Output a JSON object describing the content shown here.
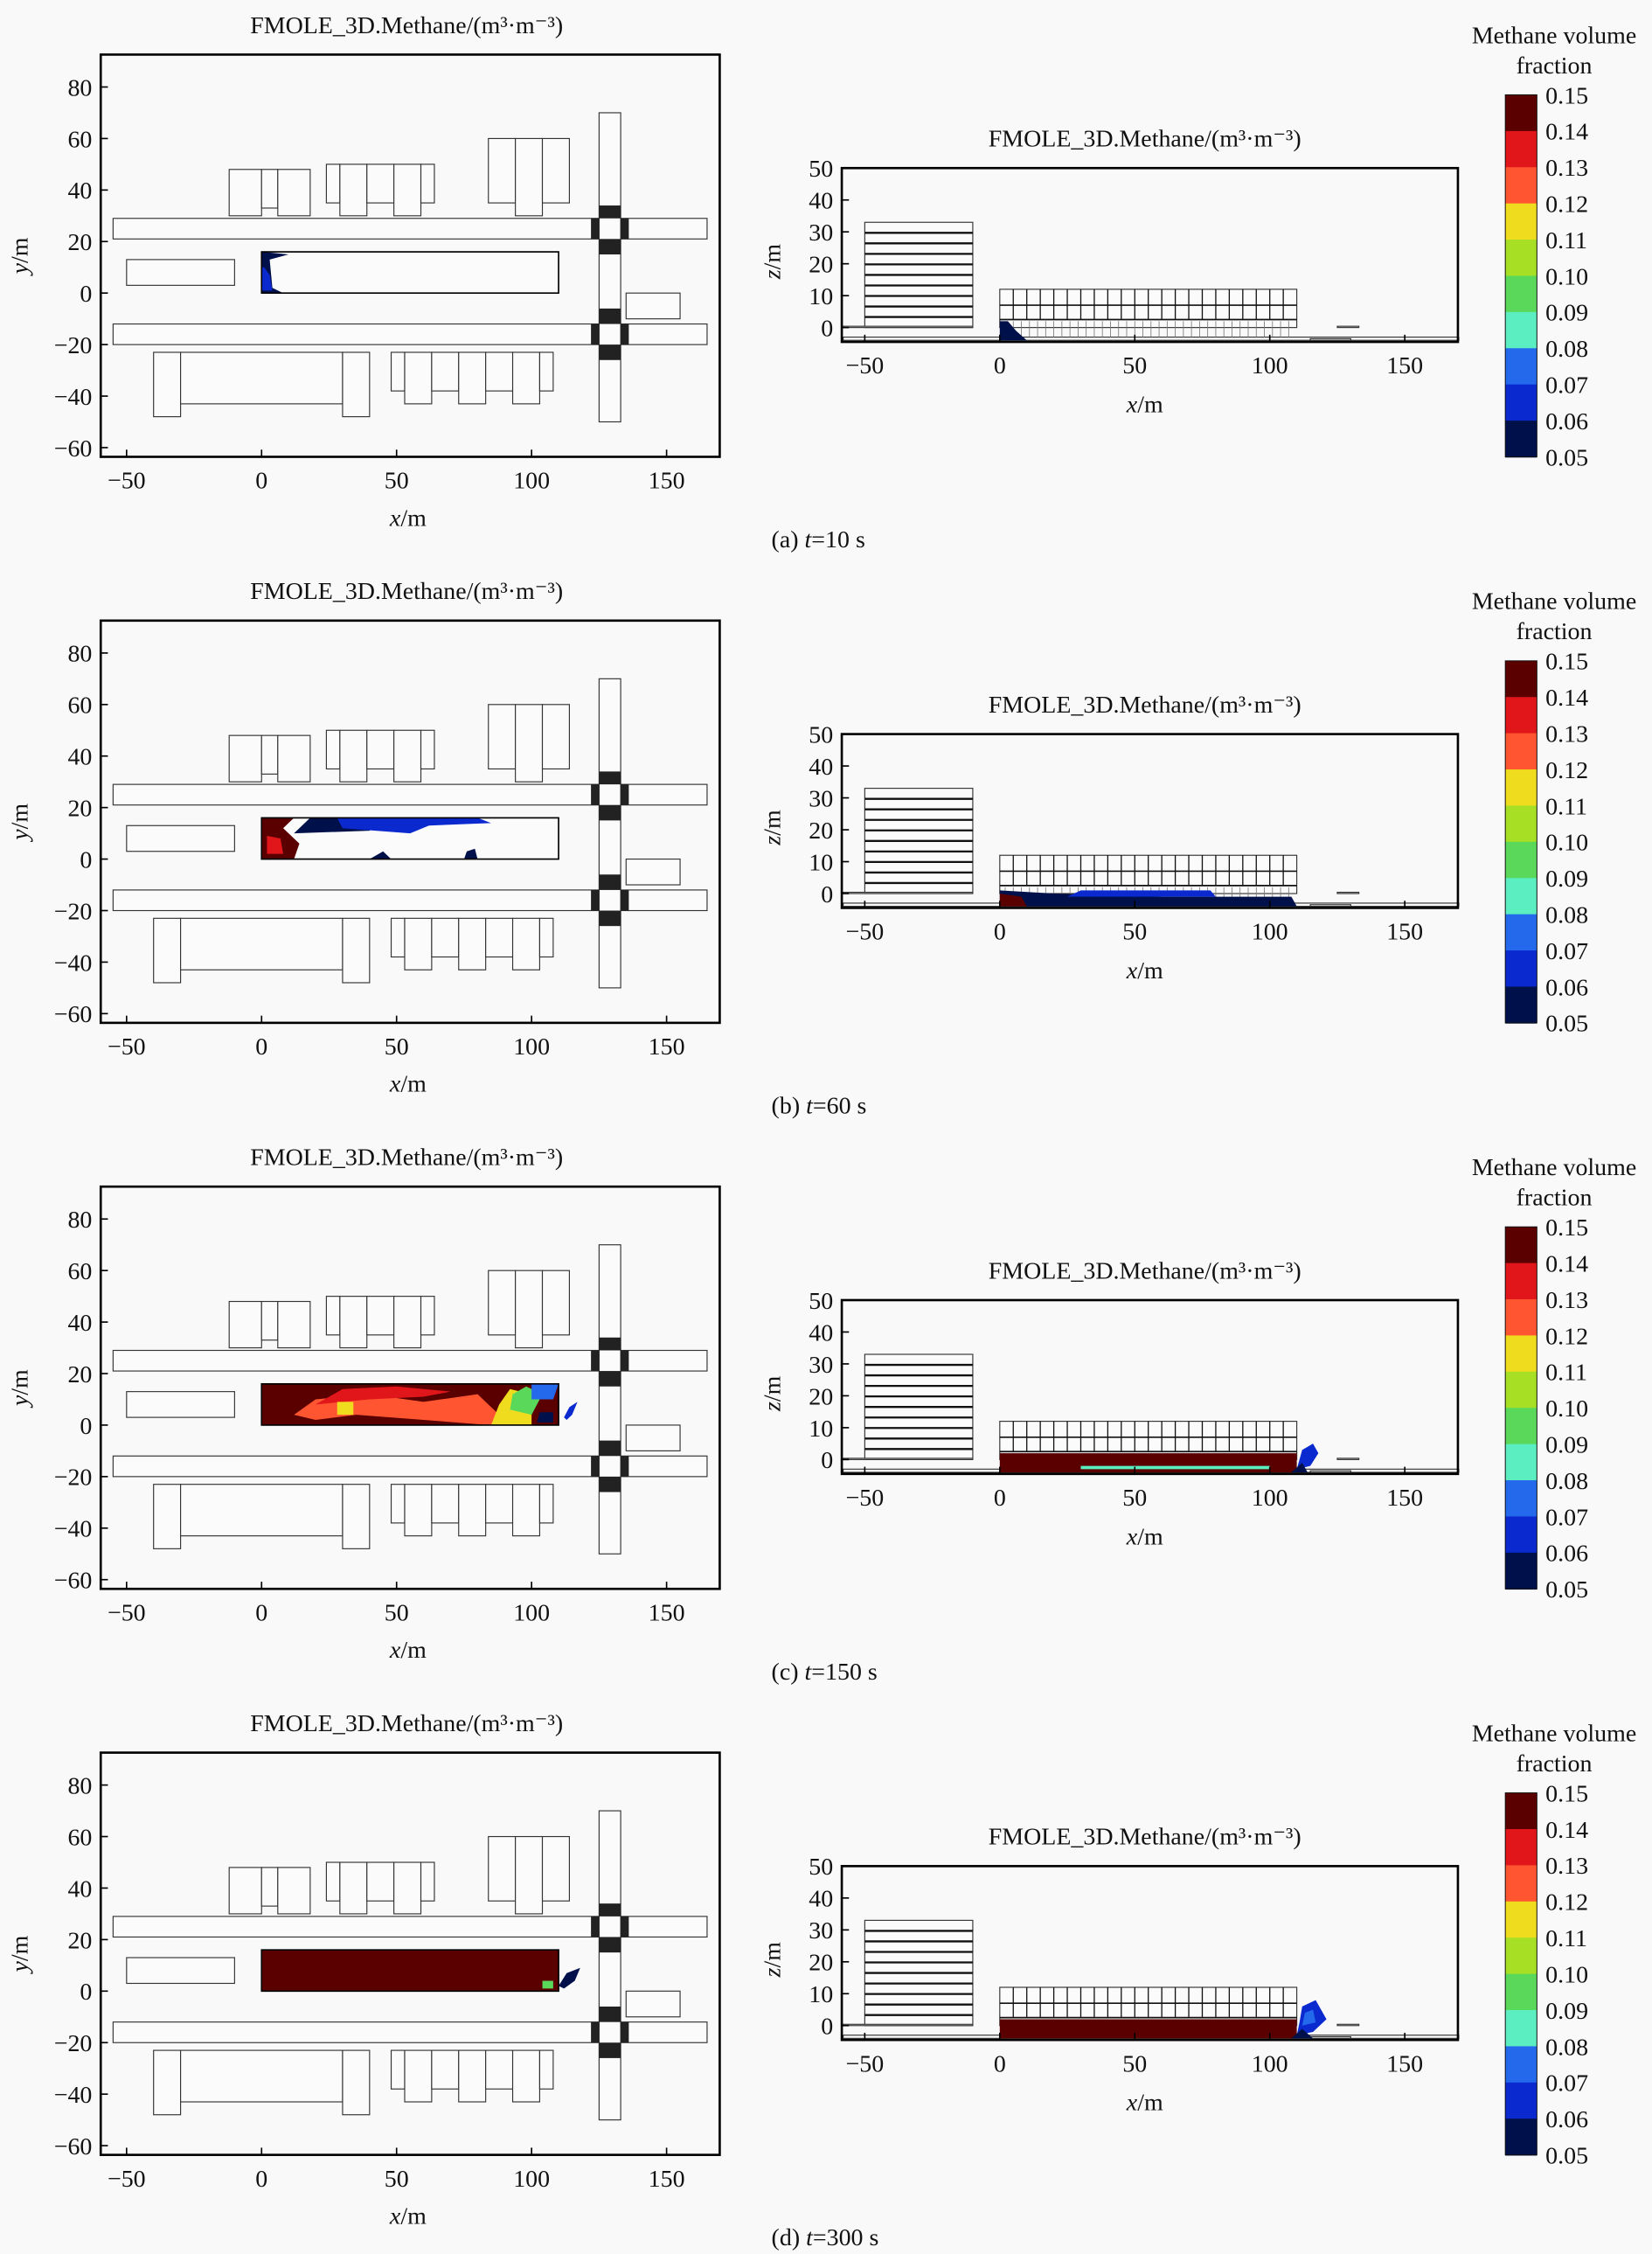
{
  "chart_data": {
    "type": "heatmap",
    "plot_title": "FMOLE_3D.Methane/(m³·m⁻³)",
    "colorbar": {
      "title_line1": "Methane volume",
      "title_line2": "fraction",
      "ticks": [
        "0.15",
        "0.14",
        "0.13",
        "0.12",
        "0.11",
        "0.10",
        "0.09",
        "0.08",
        "0.07",
        "0.06",
        "0.05"
      ],
      "range": [
        0.05,
        0.15
      ],
      "band_colors_high_to_low": [
        "#5a0000",
        "#e0161b",
        "#ff5530",
        "#f0dc1e",
        "#a6df24",
        "#5ad85a",
        "#5aeec0",
        "#2468ec",
        "#0a2ad0",
        "#00104a"
      ]
    },
    "plan_view": {
      "xlabel_var": "x",
      "xlabel_unit": "/m",
      "ylabel_var": "y",
      "ylabel_unit": "/m",
      "xlim": [
        -60,
        169
      ],
      "ylim": [
        -65,
        92
      ],
      "xticks": [
        -50,
        0,
        50,
        100,
        150
      ],
      "xtick_labels": [
        "−50",
        "0",
        "50",
        "100",
        "150"
      ],
      "yticks": [
        80,
        60,
        40,
        20,
        0,
        -20,
        -40,
        -60
      ],
      "ytick_labels": [
        "80",
        "60",
        "40",
        "20",
        "0",
        "−20",
        "−40",
        "−60"
      ],
      "grid": false
    },
    "side_view": {
      "xlabel_var": "x",
      "xlabel_unit": "/m",
      "ylabel_var": "z",
      "ylabel_unit": "/m",
      "xlim": [
        -58,
        170
      ],
      "ylim": [
        -5,
        50
      ],
      "xticks": [
        -50,
        0,
        50,
        100,
        150
      ],
      "xtick_labels": [
        "−50",
        "0",
        "50",
        "100",
        "150"
      ],
      "yticks": [
        50,
        40,
        30,
        20,
        10,
        0
      ],
      "ytick_labels": [
        "50",
        "40",
        "30",
        "20",
        "10",
        "0"
      ],
      "grid": false
    },
    "panels": [
      {
        "label": "(a) ",
        "var": "t",
        "value": "=10 s",
        "time_s": 10,
        "plan_plume": [
          {
            "color": "#00104a",
            "pts": [
              [
                0,
                0
              ],
              [
                8,
                0
              ],
              [
                4,
                2
              ],
              [
                3,
                13
              ],
              [
                10,
                15
              ],
              [
                0,
                16
              ]
            ]
          },
          {
            "color": "#0a2ad0",
            "pts": [
              [
                0,
                1
              ],
              [
                4,
                1
              ],
              [
                3,
                7
              ],
              [
                1,
                10
              ],
              [
                0,
                10
              ]
            ]
          }
        ],
        "side_plume": [
          {
            "color": "#00104a",
            "pts": [
              [
                0,
                -4
              ],
              [
                10,
                -4
              ],
              [
                6,
                -1
              ],
              [
                3,
                2
              ],
              [
                0,
                2
              ]
            ]
          }
        ]
      },
      {
        "label": "(b) ",
        "var": "t",
        "value": "=60 s",
        "time_s": 60,
        "plan_plume": [
          {
            "color": "#5a0000",
            "pts": [
              [
                0,
                0
              ],
              [
                12,
                0
              ],
              [
                14,
                6
              ],
              [
                8,
                12
              ],
              [
                12,
                16
              ],
              [
                0,
                16
              ]
            ]
          },
          {
            "color": "#e0161b",
            "pts": [
              [
                2,
                2
              ],
              [
                8,
                2
              ],
              [
                7,
                8
              ],
              [
                2,
                9
              ]
            ]
          },
          {
            "color": "#00104a",
            "pts": [
              [
                12,
                10
              ],
              [
                40,
                11
              ],
              [
                44,
                16
              ],
              [
                18,
                16
              ]
            ]
          },
          {
            "color": "#0a2ad0",
            "pts": [
              [
                30,
                12
              ],
              [
                55,
                10
              ],
              [
                62,
                13
              ],
              [
                85,
                14
              ],
              [
                80,
                16
              ],
              [
                28,
                16
              ]
            ]
          },
          {
            "color": "#00104a",
            "pts": [
              [
                40,
                0
              ],
              [
                48,
                0
              ],
              [
                45,
                3
              ]
            ]
          },
          {
            "color": "#00104a",
            "pts": [
              [
                75,
                0
              ],
              [
                80,
                0
              ],
              [
                79,
                4
              ],
              [
                76,
                3
              ]
            ]
          }
        ],
        "side_plume": [
          {
            "color": "#00104a",
            "pts": [
              [
                0,
                -4
              ],
              [
                110,
                -4
              ],
              [
                108,
                -1
              ],
              [
                60,
                -1
              ],
              [
                20,
                0
              ],
              [
                0,
                1
              ]
            ]
          },
          {
            "color": "#0a2ad0",
            "pts": [
              [
                25,
                -1
              ],
              [
                80,
                -1
              ],
              [
                78,
                1
              ],
              [
                30,
                1
              ]
            ]
          },
          {
            "color": "#5a0000",
            "pts": [
              [
                0,
                -4
              ],
              [
                10,
                -4
              ],
              [
                8,
                -1
              ],
              [
                0,
                0
              ]
            ]
          }
        ]
      },
      {
        "label": "(c) ",
        "var": "t",
        "value": "=150 s",
        "time_s": 150,
        "plan_plume": [
          {
            "color": "#5a0000",
            "pts": [
              [
                0,
                0
              ],
              [
                110,
                0
              ],
              [
                110,
                16
              ],
              [
                0,
                16
              ]
            ]
          },
          {
            "color": "#ff5530",
            "pts": [
              [
                12,
                4
              ],
              [
                20,
                10
              ],
              [
                40,
                12
              ],
              [
                60,
                9
              ],
              [
                80,
                12
              ],
              [
                88,
                4
              ],
              [
                85,
                0
              ],
              [
                60,
                2
              ],
              [
                35,
                4
              ],
              [
                20,
                2
              ]
            ]
          },
          {
            "color": "#e0161b",
            "pts": [
              [
                20,
                8
              ],
              [
                30,
                14
              ],
              [
                50,
                15
              ],
              [
                70,
                13
              ],
              [
                60,
                11
              ],
              [
                40,
                10
              ]
            ]
          },
          {
            "color": "#f0dc1e",
            "pts": [
              [
                85,
                0
              ],
              [
                100,
                0
              ],
              [
                100,
                12
              ],
              [
                92,
                14
              ],
              [
                88,
                8
              ]
            ]
          },
          {
            "color": "#5ad85a",
            "pts": [
              [
                92,
                6
              ],
              [
                100,
                4
              ],
              [
                104,
                12
              ],
              [
                98,
                15
              ],
              [
                93,
                12
              ]
            ]
          },
          {
            "color": "#2468ec",
            "pts": [
              [
                100,
                10
              ],
              [
                108,
                10
              ],
              [
                110,
                16
              ],
              [
                100,
                16
              ]
            ]
          },
          {
            "color": "#f0dc1e",
            "pts": [
              [
                28,
                4
              ],
              [
                34,
                4
              ],
              [
                34,
                9
              ],
              [
                28,
                9
              ]
            ]
          },
          {
            "color": "#00104a",
            "pts": [
              [
                102,
                1
              ],
              [
                108,
                1
              ],
              [
                108,
                5
              ],
              [
                103,
                5
              ]
            ]
          },
          {
            "color": "#0a2ad0",
            "pts": [
              [
                112,
                3
              ],
              [
                114,
                7
              ],
              [
                117,
                9
              ],
              [
                115,
                4
              ],
              [
                113,
                2
              ]
            ]
          }
        ],
        "side_plume": [
          {
            "color": "#5a0000",
            "pts": [
              [
                0,
                -4
              ],
              [
                110,
                -4
              ],
              [
                110,
                2
              ],
              [
                0,
                2
              ]
            ]
          },
          {
            "color": "#5aeec0",
            "pts": [
              [
                30,
                -3
              ],
              [
                100,
                -3
              ],
              [
                100,
                -2
              ],
              [
                30,
                -2
              ]
            ]
          },
          {
            "color": "#0a2ad0",
            "pts": [
              [
                110,
                -3
              ],
              [
                115,
                -2
              ],
              [
                118,
                2
              ],
              [
                116,
                5
              ],
              [
                112,
                3
              ],
              [
                111,
                0
              ]
            ]
          },
          {
            "color": "#00104a",
            "pts": [
              [
                108,
                -4
              ],
              [
                114,
                -4
              ],
              [
                112,
                -1
              ]
            ]
          }
        ]
      },
      {
        "label": "(d) ",
        "var": "t",
        "value": "=300 s",
        "time_s": 300,
        "plan_plume": [
          {
            "color": "#5a0000",
            "pts": [
              [
                0,
                0
              ],
              [
                110,
                0
              ],
              [
                110,
                16
              ],
              [
                0,
                16
              ]
            ]
          },
          {
            "color": "#5ad85a",
            "pts": [
              [
                104,
                1
              ],
              [
                108,
                1
              ],
              [
                108,
                4
              ],
              [
                104,
                4
              ]
            ]
          },
          {
            "color": "#00104a",
            "pts": [
              [
                110,
                2
              ],
              [
                113,
                7
              ],
              [
                118,
                9
              ],
              [
                116,
                4
              ],
              [
                112,
                1
              ]
            ]
          }
        ],
        "side_plume": [
          {
            "color": "#5a0000",
            "pts": [
              [
                0,
                -4
              ],
              [
                110,
                -4
              ],
              [
                110,
                2
              ],
              [
                0,
                2
              ]
            ]
          },
          {
            "color": "#0a2ad0",
            "pts": [
              [
                110,
                -3
              ],
              [
                116,
                -2
              ],
              [
                121,
                2
              ],
              [
                117,
                8
              ],
              [
                112,
                6
              ],
              [
                111,
                1
              ]
            ]
          },
          {
            "color": "#2468ec",
            "pts": [
              [
                112,
                0
              ],
              [
                117,
                1
              ],
              [
                116,
                5
              ],
              [
                113,
                4
              ]
            ]
          },
          {
            "color": "#00104a",
            "pts": [
              [
                108,
                -4
              ],
              [
                116,
                -4
              ],
              [
                112,
                -1
              ]
            ]
          }
        ]
      }
    ],
    "plan_buildings": [
      [
        -55,
        21,
        165,
        29
      ],
      [
        -55,
        -20,
        165,
        -12
      ],
      [
        125,
        -50,
        133,
        70
      ],
      [
        0,
        0,
        110,
        16
      ],
      [
        -50,
        3,
        -10,
        13
      ],
      [
        135,
        -10,
        155,
        0
      ],
      [
        -12,
        30,
        0,
        48
      ],
      [
        0,
        33,
        6,
        48
      ],
      [
        6,
        30,
        18,
        48
      ],
      [
        24,
        35,
        29,
        50
      ],
      [
        29,
        30,
        39,
        50
      ],
      [
        39,
        35,
        49,
        50
      ],
      [
        49,
        30,
        59,
        50
      ],
      [
        59,
        35,
        64,
        50
      ],
      [
        84,
        35,
        94,
        60
      ],
      [
        94,
        30,
        104,
        60
      ],
      [
        104,
        35,
        114,
        60
      ],
      [
        -40,
        -48,
        -30,
        -23
      ],
      [
        -30,
        -43,
        30,
        -23
      ],
      [
        30,
        -48,
        40,
        -23
      ],
      [
        48,
        -38,
        53,
        -23
      ],
      [
        53,
        -43,
        63,
        -23
      ],
      [
        63,
        -38,
        73,
        -23
      ],
      [
        73,
        -43,
        83,
        -23
      ],
      [
        83,
        -38,
        93,
        -23
      ],
      [
        93,
        -43,
        103,
        -23
      ],
      [
        103,
        -38,
        108,
        -23
      ]
    ],
    "side_buildings": [
      [
        -50,
        0,
        -10,
        33
      ],
      [
        0,
        0,
        110,
        12
      ],
      [
        -58,
        -4,
        170,
        -3
      ],
      [
        -58,
        0,
        -10,
        0.4
      ],
      [
        115,
        -4,
        130,
        -3.5
      ],
      [
        125,
        0,
        133,
        0.4
      ]
    ]
  }
}
